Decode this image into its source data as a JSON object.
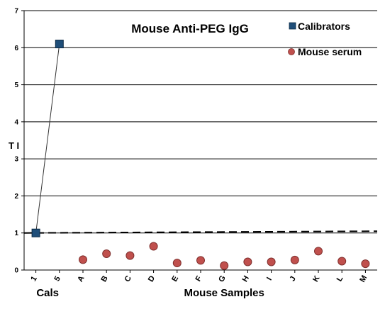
{
  "chart_data": {
    "type": "scatter",
    "title": "Mouse Anti-PEG IgG",
    "ylabel": "T I",
    "ylim": [
      0,
      7
    ],
    "yticks": [
      0,
      1,
      2,
      3,
      4,
      5,
      6,
      7
    ],
    "grid": true,
    "legend_position": "top-right",
    "categories": [
      "1",
      "5",
      "A",
      "B",
      "C",
      "D",
      "E",
      "F",
      "G",
      "H",
      "I",
      "J",
      "K",
      "L",
      "M"
    ],
    "group_labels": [
      {
        "text": "Cals",
        "categories": [
          "1",
          "5"
        ]
      },
      {
        "text": "Mouse Samples",
        "categories": [
          "A",
          "B",
          "C",
          "D",
          "E",
          "F",
          "G",
          "H",
          "I",
          "J",
          "K",
          "L",
          "M"
        ]
      }
    ],
    "threshold_line": {
      "y": 1.0,
      "style": "dashed"
    },
    "series": [
      {
        "name": "Calibrators",
        "marker": "square",
        "color": "#1f4e79",
        "connected": true,
        "points": [
          {
            "x": "1",
            "y": 1.0
          },
          {
            "x": "5",
            "y": 6.1
          }
        ]
      },
      {
        "name": "Mouse serum",
        "marker": "circle",
        "color": "#c0504d",
        "connected": false,
        "points": [
          {
            "x": "A",
            "y": 0.28
          },
          {
            "x": "B",
            "y": 0.44
          },
          {
            "x": "C",
            "y": 0.39
          },
          {
            "x": "D",
            "y": 0.64
          },
          {
            "x": "E",
            "y": 0.19
          },
          {
            "x": "F",
            "y": 0.26
          },
          {
            "x": "G",
            "y": 0.12
          },
          {
            "x": "H",
            "y": 0.22
          },
          {
            "x": "I",
            "y": 0.22
          },
          {
            "x": "J",
            "y": 0.27
          },
          {
            "x": "K",
            "y": 0.51
          },
          {
            "x": "L",
            "y": 0.24
          },
          {
            "x": "M",
            "y": 0.17
          }
        ]
      }
    ]
  }
}
